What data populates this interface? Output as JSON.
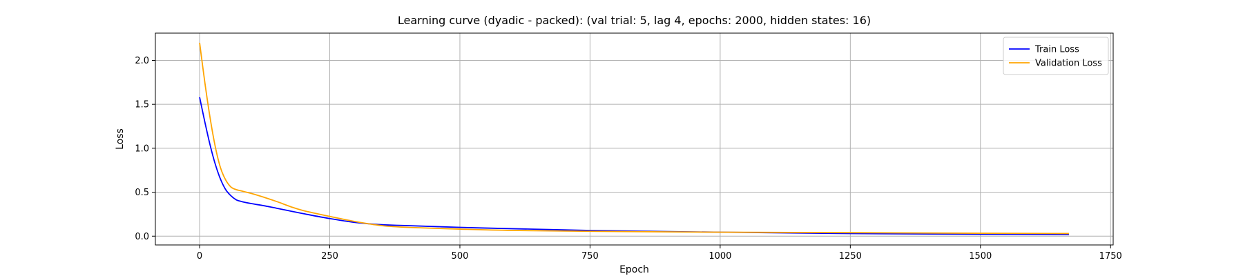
{
  "chart_data": {
    "type": "line",
    "title": "Learning curve (dyadic - packed): (val trial: 5, lag 4, epochs: 2000, hidden states: 16)",
    "xlabel": "Epoch",
    "ylabel": "Loss",
    "xlim": [
      -85,
      1755
    ],
    "ylim": [
      -0.1,
      2.31
    ],
    "xticks": [
      0,
      250,
      500,
      750,
      1000,
      1250,
      1500,
      1750
    ],
    "yticks": [
      0.0,
      0.5,
      1.0,
      1.5,
      2.0
    ],
    "xtick_labels": [
      "0",
      "250",
      "500",
      "750",
      "1000",
      "1250",
      "1500",
      "1750"
    ],
    "ytick_labels": [
      "0.0",
      "0.5",
      "1.0",
      "1.5",
      "2.0"
    ],
    "grid": true,
    "legend_position": "top-right",
    "series": [
      {
        "name": "Train Loss",
        "color": "#0000ff",
        "x": [
          0,
          10,
          20,
          30,
          40,
          50,
          60,
          70,
          80,
          100,
          125,
          150,
          175,
          200,
          250,
          300,
          350,
          400,
          500,
          600,
          750,
          1000,
          1250,
          1500,
          1670
        ],
        "y": [
          1.58,
          1.3,
          1.04,
          0.82,
          0.65,
          0.53,
          0.46,
          0.415,
          0.395,
          0.37,
          0.345,
          0.315,
          0.285,
          0.255,
          0.2,
          0.155,
          0.13,
          0.12,
          0.1,
          0.085,
          0.065,
          0.045,
          0.03,
          0.022,
          0.018
        ]
      },
      {
        "name": "Validation Loss",
        "color": "#ffa500",
        "x": [
          0,
          10,
          20,
          30,
          40,
          50,
          60,
          70,
          80,
          100,
          125,
          150,
          175,
          200,
          250,
          300,
          350,
          400,
          500,
          600,
          750,
          1000,
          1250,
          1500,
          1670
        ],
        "y": [
          2.2,
          1.75,
          1.35,
          1.02,
          0.78,
          0.64,
          0.56,
          0.53,
          0.515,
          0.485,
          0.44,
          0.39,
          0.335,
          0.29,
          0.225,
          0.165,
          0.12,
          0.1,
          0.08,
          0.065,
          0.055,
          0.045,
          0.04,
          0.033,
          0.03
        ]
      }
    ]
  }
}
